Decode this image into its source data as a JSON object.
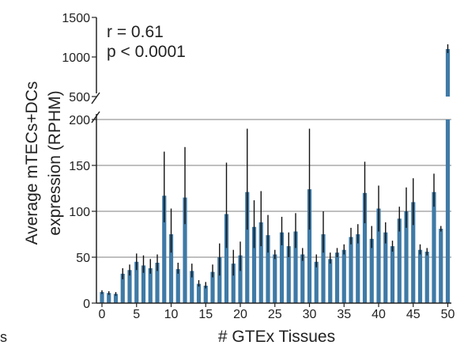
{
  "chart_data": {
    "type": "bar",
    "title": "",
    "xlabel": "# GTEx Tissues",
    "ylabel_line1": "Average mTECs+DCs",
    "ylabel_line2": "expression (RPHM)",
    "x_ticks": [
      "0",
      "5",
      "10",
      "15",
      "20",
      "25",
      "30",
      "35",
      "40",
      "45",
      "50"
    ],
    "y_ticks_lower": [
      "0",
      "50",
      "100",
      "150",
      "200"
    ],
    "y_ticks_upper": [
      "500",
      "1000",
      "1500"
    ],
    "ylim": [
      0,
      1500
    ],
    "axis_break": [
      200,
      500
    ],
    "grid": true,
    "bar_color": "#3f7aa6",
    "annotations": {
      "r": "r = 0.61",
      "p": "p < 0.0001"
    },
    "cut_text": "s",
    "x": [
      0,
      1,
      2,
      3,
      4,
      5,
      6,
      7,
      8,
      9,
      10,
      11,
      12,
      13,
      14,
      15,
      16,
      17,
      18,
      19,
      20,
      21,
      22,
      23,
      24,
      25,
      26,
      27,
      28,
      29,
      30,
      31,
      32,
      33,
      34,
      35,
      36,
      37,
      38,
      39,
      40,
      41,
      42,
      43,
      44,
      45,
      46,
      47,
      48,
      49,
      50
    ],
    "values": [
      12,
      11,
      10,
      32,
      36,
      45,
      41,
      38,
      44,
      117,
      75,
      37,
      115,
      35,
      21,
      19,
      34,
      50,
      97,
      43,
      52,
      121,
      83,
      88,
      74,
      53,
      77,
      62,
      78,
      53,
      124,
      45,
      75,
      48,
      55,
      58,
      72,
      75,
      120,
      70,
      103,
      77,
      62,
      92,
      100,
      110,
      58,
      56,
      121,
      81,
      1100
    ],
    "error_low": [
      10,
      9,
      8,
      26,
      30,
      36,
      33,
      32,
      35,
      88,
      55,
      32,
      86,
      28,
      18,
      16,
      28,
      30,
      60,
      30,
      35,
      80,
      60,
      62,
      55,
      48,
      63,
      50,
      60,
      46,
      80,
      39,
      55,
      43,
      50,
      53,
      64,
      65,
      87,
      60,
      78,
      65,
      56,
      78,
      82,
      85,
      53,
      52,
      105,
      78,
      1050
    ],
    "error_high": [
      14,
      13,
      12,
      38,
      42,
      54,
      52,
      48,
      53,
      165,
      103,
      44,
      170,
      43,
      25,
      23,
      42,
      65,
      153,
      58,
      67,
      190,
      112,
      122,
      96,
      58,
      94,
      77,
      98,
      60,
      190,
      53,
      100,
      55,
      60,
      64,
      82,
      86,
      154,
      84,
      128,
      88,
      68,
      105,
      126,
      136,
      64,
      60,
      141,
      84,
      1160
    ]
  }
}
